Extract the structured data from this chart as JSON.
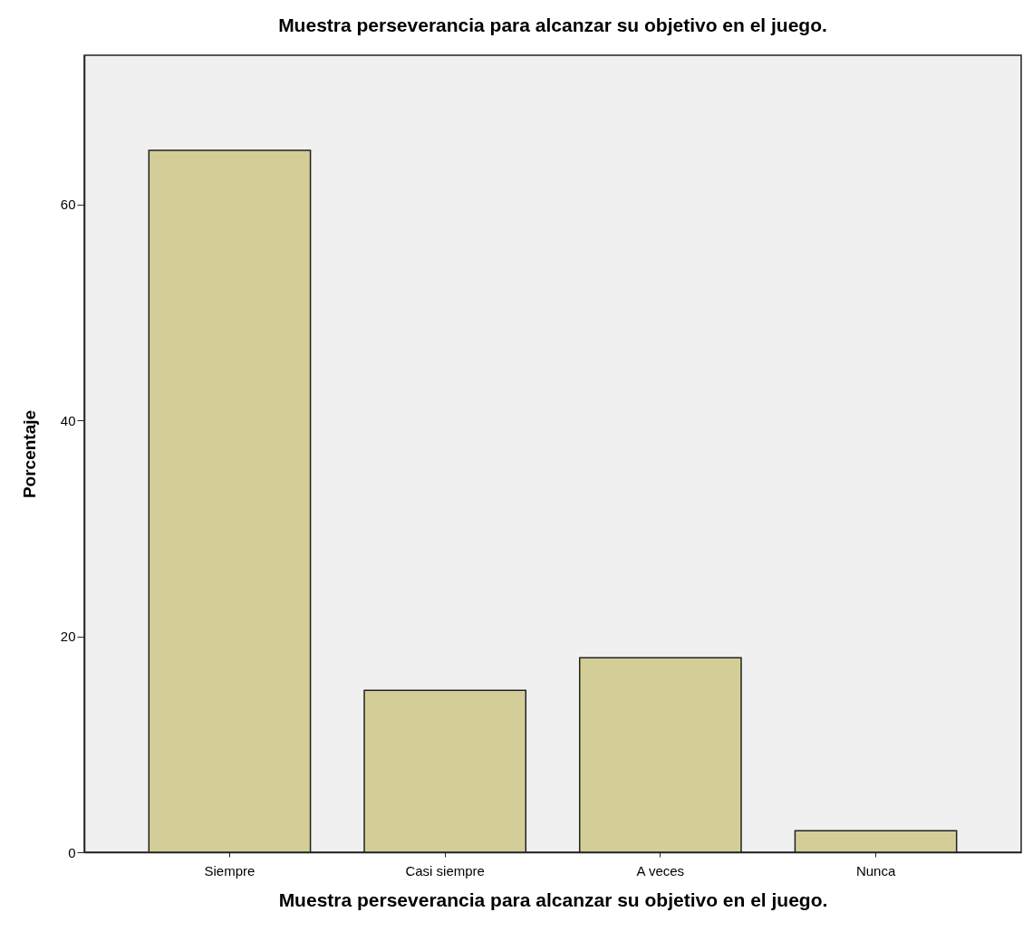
{
  "chart_data": {
    "type": "bar",
    "title": "Muestra perseverancia para alcanzar su objetivo en el juego.",
    "xlabel": "Muestra perseverancia para alcanzar su objetivo en el juego.",
    "ylabel": "Porcentaje",
    "categories": [
      "Siempre",
      "Casi siempre",
      "A veces",
      "Nunca"
    ],
    "values": [
      65,
      15,
      18,
      2
    ],
    "color": "#d3ce97",
    "ylim": [
      0,
      73.8
    ],
    "yticks": [
      0,
      20,
      40,
      60
    ],
    "grid": false
  }
}
